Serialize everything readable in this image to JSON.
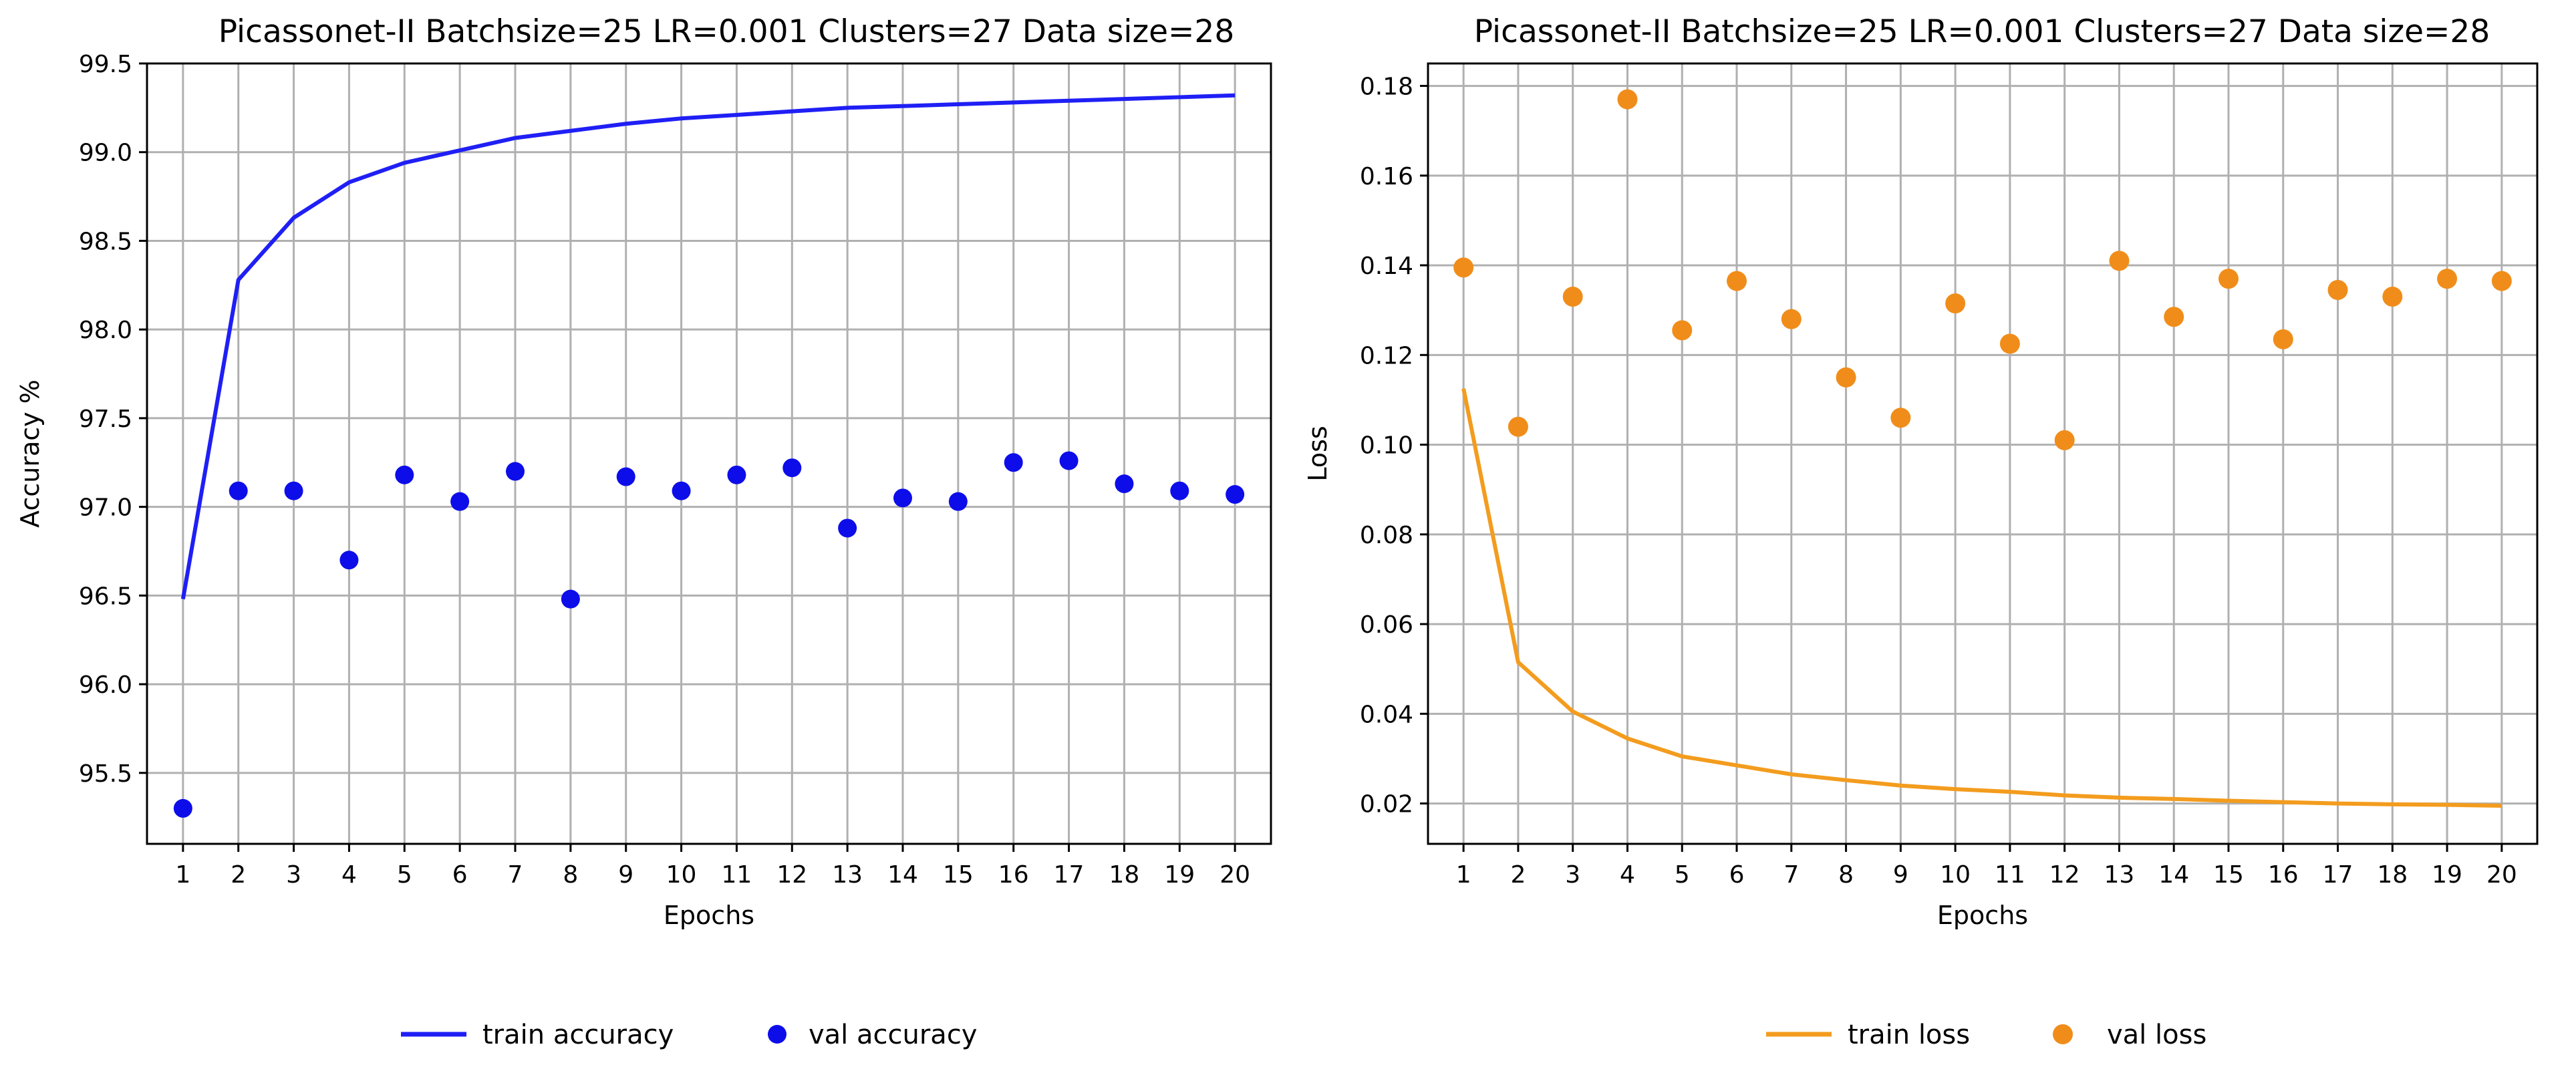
{
  "chart_data": [
    {
      "type": "line",
      "title": "Picassonet-II Batchsize=25 LR=0.001 Clusters=27 Data size=28",
      "xlabel": "Epochs",
      "ylabel": "Accuracy %",
      "x": [
        1,
        2,
        3,
        4,
        5,
        6,
        7,
        8,
        9,
        10,
        11,
        12,
        13,
        14,
        15,
        16,
        17,
        18,
        19,
        20
      ],
      "xlim": [
        0.35,
        20.65
      ],
      "ylim": [
        95.1,
        99.5
      ],
      "yticks": [
        95.5,
        96.0,
        96.5,
        97.0,
        97.5,
        98.0,
        98.5,
        99.0,
        99.5
      ],
      "ytick_labels": [
        "95.5",
        "96.0",
        "96.5",
        "97.0",
        "97.5",
        "98.0",
        "98.5",
        "99.0",
        "99.5"
      ],
      "grid": true,
      "legend_position": "below plot",
      "series": [
        {
          "name": "train accuracy",
          "kind": "line",
          "color": "#1f1ff5",
          "values": [
            96.48,
            98.28,
            98.63,
            98.83,
            98.94,
            99.01,
            99.08,
            99.12,
            99.16,
            99.19,
            99.21,
            99.23,
            99.25,
            99.26,
            99.27,
            99.28,
            99.29,
            99.3,
            99.31,
            99.32
          ]
        },
        {
          "name": "val accuracy",
          "kind": "scatter",
          "color": "#0d0dea",
          "values": [
            95.3,
            97.09,
            97.09,
            96.7,
            97.18,
            97.03,
            97.2,
            96.48,
            97.17,
            97.09,
            97.18,
            97.22,
            96.88,
            97.05,
            97.03,
            97.25,
            97.26,
            97.13,
            97.09,
            97.07
          ]
        }
      ]
    },
    {
      "type": "line",
      "title": "Picassonet-II Batchsize=25 LR=0.001 Clusters=27 Data size=28",
      "xlabel": "Epochs",
      "ylabel": "Loss",
      "x": [
        1,
        2,
        3,
        4,
        5,
        6,
        7,
        8,
        9,
        10,
        11,
        12,
        13,
        14,
        15,
        16,
        17,
        18,
        19,
        20
      ],
      "xlim": [
        0.35,
        20.65
      ],
      "ylim": [
        0.011,
        0.185
      ],
      "yticks": [
        0.02,
        0.04,
        0.06,
        0.08,
        0.1,
        0.12,
        0.14,
        0.16,
        0.18
      ],
      "ytick_labels": [
        "0.02",
        "0.04",
        "0.06",
        "0.08",
        "0.10",
        "0.12",
        "0.14",
        "0.16",
        "0.18"
      ],
      "grid": true,
      "legend_position": "below plot",
      "series": [
        {
          "name": "train loss",
          "kind": "line",
          "color": "#f39c1e",
          "values": [
            0.1125,
            0.0515,
            0.0405,
            0.0345,
            0.0305,
            0.0285,
            0.0265,
            0.0252,
            0.024,
            0.0232,
            0.0226,
            0.0218,
            0.0213,
            0.021,
            0.0206,
            0.0203,
            0.02,
            0.0198,
            0.0197,
            0.0195
          ]
        },
        {
          "name": "val loss",
          "kind": "scatter",
          "color": "#f08d1a",
          "values": [
            0.1395,
            0.104,
            0.133,
            0.177,
            0.1255,
            0.1365,
            0.128,
            0.115,
            0.106,
            0.1315,
            0.1225,
            0.101,
            0.141,
            0.1285,
            0.137,
            0.1235,
            0.1345,
            0.133,
            0.137,
            0.1365
          ]
        }
      ]
    }
  ]
}
